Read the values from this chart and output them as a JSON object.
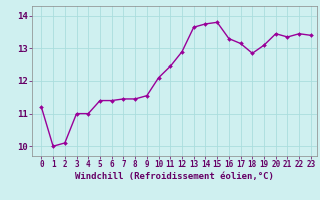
{
  "x": [
    0,
    1,
    2,
    3,
    4,
    5,
    6,
    7,
    8,
    9,
    10,
    11,
    12,
    13,
    14,
    15,
    16,
    17,
    18,
    19,
    20,
    21,
    22,
    23
  ],
  "y": [
    11.2,
    10.0,
    10.1,
    11.0,
    11.0,
    11.4,
    11.4,
    11.45,
    11.45,
    11.55,
    12.1,
    12.45,
    12.9,
    13.65,
    13.75,
    13.8,
    13.3,
    13.15,
    12.85,
    13.1,
    13.45,
    13.35,
    13.45,
    13.4
  ],
  "line_color": "#990099",
  "marker": "D",
  "marker_size": 2.0,
  "bg_color": "#cff0f0",
  "grid_color": "#aadddd",
  "xlabel": "Windchill (Refroidissement éolien,°C)",
  "xlabel_fontsize": 6.5,
  "tick_fontsize": 5.5,
  "ylim": [
    9.7,
    14.3
  ],
  "yticks": [
    10,
    11,
    12,
    13,
    14
  ],
  "xticks": [
    0,
    1,
    2,
    3,
    4,
    5,
    6,
    7,
    8,
    9,
    10,
    11,
    12,
    13,
    14,
    15,
    16,
    17,
    18,
    19,
    20,
    21,
    22,
    23
  ],
  "line_width": 1.0
}
